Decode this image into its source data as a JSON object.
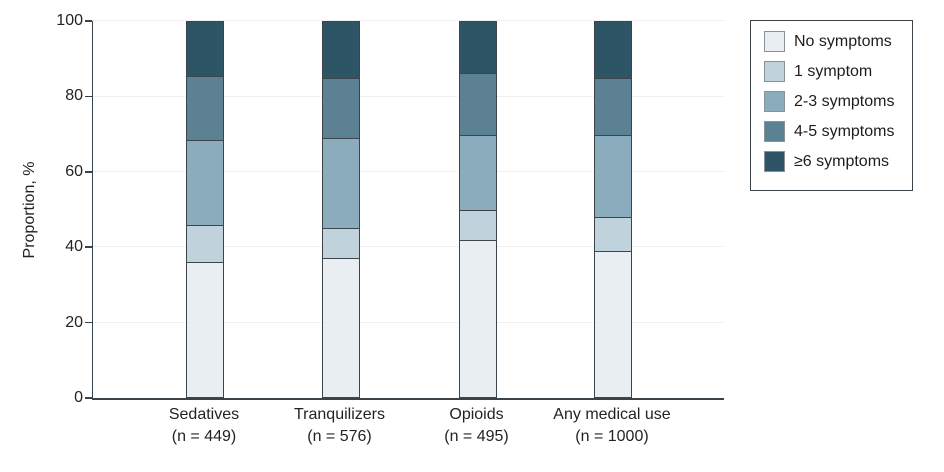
{
  "figure": {
    "background": "#ffffff",
    "axis_color": "#3a424a",
    "grid_color": "#e0e3e4",
    "bar_border_color": "#3d454c",
    "text_color": "#232323",
    "ylabel": "Proportion, %"
  },
  "chart_data": {
    "type": "bar",
    "stacked": true,
    "orientation": "vertical",
    "title": "",
    "xlabel": "",
    "ylabel": "Proportion, %",
    "ylim": [
      0,
      100
    ],
    "yticks": [
      0,
      20,
      40,
      60,
      80,
      100
    ],
    "grid": "horizontal dotted gridlines at each y tick",
    "legend_position": "outside top-right, boxed",
    "categories": [
      "Sedatives",
      "Tranquilizers",
      "Opioids",
      "Any medical use"
    ],
    "category_sublabels": [
      "(n = 449)",
      "(n = 576)",
      "(n = 495)",
      "(n = 1000)"
    ],
    "series": [
      {
        "name": "No symptoms",
        "color": "#e9eef2",
        "values": [
          36,
          37,
          42,
          39
        ]
      },
      {
        "name": "1 symptom",
        "color": "#c0d2db",
        "values": [
          10,
          8,
          8,
          9
        ]
      },
      {
        "name": "2-3 symptoms",
        "color": "#8bacbd",
        "values": [
          22.5,
          24,
          20,
          22
        ]
      },
      {
        "name": "4-5 symptoms",
        "color": "#5b8193",
        "values": [
          17,
          16,
          16.5,
          15
        ]
      },
      {
        "name": "≥6 symptoms",
        "color": "#2d5565",
        "values": [
          14.5,
          15,
          13.5,
          15
        ]
      }
    ]
  }
}
